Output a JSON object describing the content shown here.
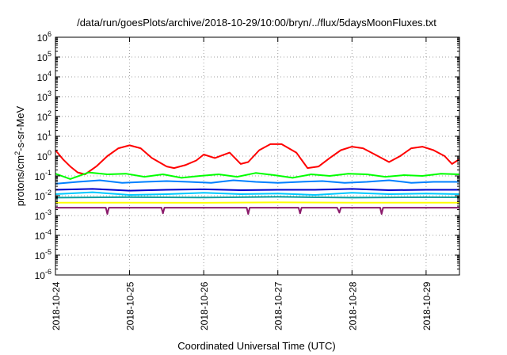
{
  "chart_data": {
    "type": "line",
    "title": "/data/run/goesPlots/archive/2018-10-29/10:00/bryn/../flux/5daysMoonFluxes.txt",
    "xlabel": "Coordinated Universal Time (UTC)",
    "ylabel": "protons/cm2-s-sr-MeV",
    "ylabel_parts": [
      "protons/cm",
      "2",
      "-s-sr-MeV"
    ],
    "yscale": "log",
    "ylim_exp": [
      -6,
      6
    ],
    "xlim_days": [
      0,
      5.45
    ],
    "x_ticks": [
      "2018-10-24",
      "2018-10-25",
      "2018-10-26",
      "2018-10-27",
      "2018-10-28",
      "2018-10-29"
    ],
    "y_ticks": [
      {
        "base": "10",
        "exp": "-6"
      },
      {
        "base": "10",
        "exp": "-5"
      },
      {
        "base": "10",
        "exp": "-4"
      },
      {
        "base": "10",
        "exp": "-3"
      },
      {
        "base": "10",
        "exp": "-2"
      },
      {
        "base": "10",
        "exp": "-1"
      },
      {
        "base": "10",
        "exp": "0"
      },
      {
        "base": "10",
        "exp": "1"
      },
      {
        "base": "10",
        "exp": "2"
      },
      {
        "base": "10",
        "exp": "3"
      },
      {
        "base": "10",
        "exp": "4"
      },
      {
        "base": "10",
        "exp": "5"
      },
      {
        "base": "10",
        "exp": "6"
      }
    ],
    "grid": true,
    "legend": "none",
    "series": [
      {
        "color": "#ff0000",
        "x": [
          0.0,
          0.1,
          0.2,
          0.3,
          0.4,
          0.55,
          0.7,
          0.85,
          1.0,
          1.15,
          1.3,
          1.5,
          1.6,
          1.75,
          1.9,
          2.0,
          2.15,
          2.35,
          2.5,
          2.6,
          2.75,
          2.9,
          3.05,
          3.25,
          3.4,
          3.55,
          3.7,
          3.85,
          4.0,
          4.15,
          4.35,
          4.5,
          4.65,
          4.8,
          4.95,
          5.1,
          5.25,
          5.35,
          5.45
        ],
        "y": [
          2.0,
          0.7,
          0.3,
          0.15,
          0.12,
          0.3,
          1.0,
          2.5,
          3.5,
          2.5,
          0.8,
          0.3,
          0.25,
          0.35,
          0.6,
          1.2,
          0.8,
          1.5,
          0.4,
          0.5,
          2.0,
          4.0,
          4.0,
          1.5,
          0.25,
          0.3,
          0.8,
          2.0,
          3.0,
          2.5,
          1.0,
          0.5,
          1.0,
          2.5,
          3.0,
          2.0,
          1.0,
          0.4,
          0.7
        ]
      },
      {
        "color": "#00ff00",
        "x": [
          0.0,
          0.2,
          0.45,
          0.7,
          0.95,
          1.2,
          1.45,
          1.7,
          1.95,
          2.2,
          2.45,
          2.7,
          2.95,
          3.2,
          3.45,
          3.7,
          3.95,
          4.2,
          4.45,
          4.7,
          4.95,
          5.2,
          5.45
        ],
        "y": [
          0.13,
          0.07,
          0.15,
          0.12,
          0.13,
          0.09,
          0.12,
          0.08,
          0.1,
          0.12,
          0.09,
          0.14,
          0.11,
          0.08,
          0.12,
          0.1,
          0.13,
          0.12,
          0.09,
          0.11,
          0.1,
          0.13,
          0.12
        ]
      },
      {
        "color": "#00c8ff",
        "x": [
          0.0,
          0.5,
          1.0,
          1.5,
          2.0,
          2.5,
          3.0,
          3.5,
          4.0,
          4.5,
          5.0,
          5.45
        ],
        "y": [
          0.012,
          0.015,
          0.011,
          0.012,
          0.014,
          0.012,
          0.013,
          0.011,
          0.014,
          0.012,
          0.013,
          0.012
        ]
      },
      {
        "color": "#0080ff",
        "x": [
          0.0,
          0.3,
          0.6,
          0.9,
          1.2,
          1.5,
          1.8,
          2.1,
          2.4,
          2.7,
          3.0,
          3.3,
          3.6,
          3.9,
          4.2,
          4.5,
          4.8,
          5.1,
          5.45
        ],
        "y": [
          0.04,
          0.05,
          0.06,
          0.045,
          0.05,
          0.055,
          0.05,
          0.045,
          0.06,
          0.05,
          0.045,
          0.05,
          0.055,
          0.045,
          0.05,
          0.06,
          0.045,
          0.05,
          0.05
        ]
      },
      {
        "color": "#0000cc",
        "x": [
          0.0,
          0.5,
          1.0,
          1.5,
          2.0,
          2.5,
          3.0,
          3.5,
          4.0,
          4.5,
          5.0,
          5.45
        ],
        "y": [
          0.02,
          0.022,
          0.018,
          0.02,
          0.021,
          0.019,
          0.02,
          0.02,
          0.022,
          0.019,
          0.02,
          0.02
        ]
      },
      {
        "color": "#00a0a0",
        "x": [
          0.0,
          1.0,
          2.0,
          3.0,
          4.0,
          5.0,
          5.45
        ],
        "y": [
          0.008,
          0.0085,
          0.0082,
          0.0088,
          0.008,
          0.0084,
          0.0083
        ]
      },
      {
        "color": "#ffff00",
        "x": [
          0.0,
          1.0,
          2.0,
          3.0,
          4.0,
          5.0,
          5.45
        ],
        "y": [
          0.0045,
          0.0045,
          0.0044,
          0.0046,
          0.0045,
          0.0045,
          0.0045
        ]
      },
      {
        "color": "#8b1a6b",
        "x": [
          0.0,
          0.68,
          0.7,
          0.72,
          1.0,
          1.43,
          1.45,
          1.47,
          2.0,
          2.58,
          2.6,
          2.62,
          3.0,
          3.28,
          3.3,
          3.32,
          3.8,
          3.83,
          3.85,
          4.0,
          4.38,
          4.4,
          4.42,
          5.0,
          5.45
        ],
        "y": [
          0.0025,
          0.0025,
          0.0012,
          0.0025,
          0.0025,
          0.0025,
          0.0013,
          0.0025,
          0.0025,
          0.0025,
          0.0012,
          0.0025,
          0.0025,
          0.0025,
          0.0013,
          0.0025,
          0.0025,
          0.0014,
          0.0025,
          0.0025,
          0.0025,
          0.0012,
          0.0025,
          0.0025,
          0.0025
        ]
      }
    ]
  }
}
